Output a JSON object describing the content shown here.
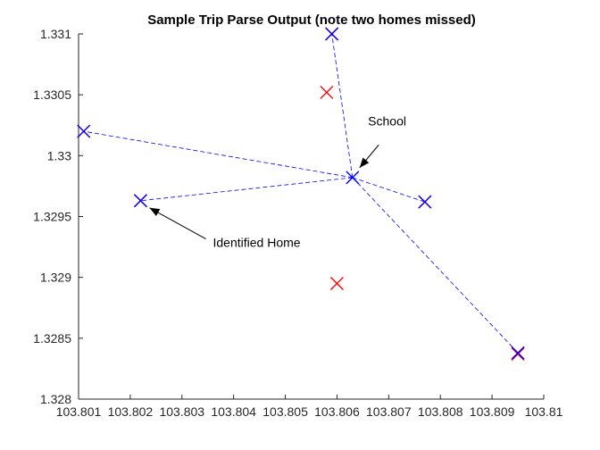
{
  "chart_data": {
    "type": "scatter",
    "title": "Sample Trip Parse Output (note two homes missed)",
    "xlabel": "",
    "ylabel": "",
    "xlim": [
      103.801,
      103.81
    ],
    "ylim": [
      1.328,
      1.331
    ],
    "x_ticks": [
      103.801,
      103.802,
      103.803,
      103.804,
      103.805,
      103.806,
      103.807,
      103.808,
      103.809,
      103.81
    ],
    "x_tick_labels": [
      "103.801",
      "103.802",
      "103.803",
      "103.804",
      "103.805",
      "103.806",
      "103.807",
      "103.808",
      "103.809",
      "103.81"
    ],
    "y_ticks": [
      1.328,
      1.3285,
      1.329,
      1.3295,
      1.33,
      1.3305,
      1.331
    ],
    "y_tick_labels": [
      "1.328",
      "1.3285",
      "1.329",
      "1.3295",
      "1.33",
      "1.3305",
      "1.331"
    ],
    "grid": false,
    "box": false,
    "hub": {
      "x": 103.8063,
      "y": 1.32982
    },
    "series": [
      {
        "marker": "x",
        "color": "#ff0000",
        "points": [
          {
            "x": 103.8011,
            "y": 1.3302
          },
          {
            "x": 103.8022,
            "y": 1.32963
          },
          {
            "x": 103.8059,
            "y": 1.331
          },
          {
            "x": 103.8058,
            "y": 1.33052
          },
          {
            "x": 103.806,
            "y": 1.32895
          },
          {
            "x": 103.8077,
            "y": 1.32962
          },
          {
            "x": 103.8095,
            "y": 1.32837
          }
        ]
      },
      {
        "marker": "x",
        "color": "#0000ff",
        "points": [
          {
            "x": 103.8063,
            "y": 1.32982
          },
          {
            "x": 103.8011,
            "y": 1.3302
          },
          {
            "x": 103.8022,
            "y": 1.32963
          },
          {
            "x": 103.8059,
            "y": 1.331
          },
          {
            "x": 103.8077,
            "y": 1.32962
          },
          {
            "x": 103.8095,
            "y": 1.32838
          }
        ]
      }
    ],
    "trips": [
      {
        "x": [
          103.8063,
          103.8011
        ],
        "y": [
          1.32982,
          1.3302
        ],
        "color": "#0000ff",
        "style": "dashed"
      },
      {
        "x": [
          103.8063,
          103.8022
        ],
        "y": [
          1.32982,
          1.32963
        ],
        "color": "#0000ff",
        "style": "dashed"
      },
      {
        "x": [
          103.8063,
          103.8059
        ],
        "y": [
          1.32982,
          1.331
        ],
        "color": "#0000ff",
        "style": "dashed"
      },
      {
        "x": [
          103.8063,
          103.8077
        ],
        "y": [
          1.32982,
          1.32962
        ],
        "color": "#0000ff",
        "style": "dashed"
      },
      {
        "x": [
          103.8063,
          103.8095
        ],
        "y": [
          1.32982,
          1.32838
        ],
        "color": "#0000ff",
        "style": "dashed"
      }
    ],
    "annotations": [
      {
        "text": "School",
        "point_at": {
          "x": 103.8063,
          "y": 1.32982
        },
        "text_at": {
          "x": 103.8066,
          "y": 1.33025
        }
      },
      {
        "text": "Identified Home",
        "point_at": {
          "x": 103.8022,
          "y": 1.32963
        },
        "text_at": {
          "x": 103.8036,
          "y": 1.32925
        }
      }
    ]
  }
}
